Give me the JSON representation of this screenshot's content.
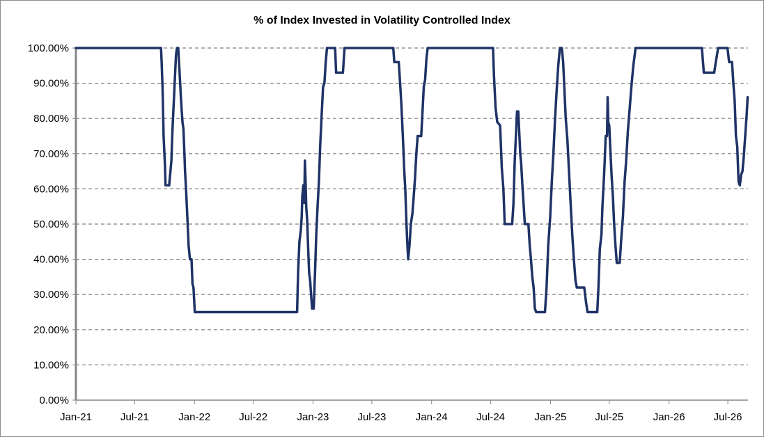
{
  "chart_data": {
    "type": "line",
    "title": "% of Index Invested in Volatility Controlled Index",
    "xlabel": "",
    "ylabel": "",
    "ylim": [
      0,
      100
    ],
    "y_ticks": [
      "0.00%",
      "10.00%",
      "20.00%",
      "30.00%",
      "40.00%",
      "50.00%",
      "60.00%",
      "70.00%",
      "80.00%",
      "90.00%",
      "100.00%"
    ],
    "x_ticks": [
      "Jan-21",
      "Jul-21",
      "Jan-22",
      "Jul-22",
      "Jan-23",
      "Jul-23",
      "Jan-24",
      "Jul-24",
      "Jan-25",
      "Jul-25",
      "Jan-26",
      "Jul-26"
    ],
    "grid": "horizontal dashed",
    "line_color": "#1f3366",
    "series": [
      {
        "values": [
          [
            "2021-01-01",
            100
          ],
          [
            "2021-01-02",
            100
          ],
          [
            "2021-02-15",
            100
          ],
          [
            "2021-04-01",
            100
          ],
          [
            "2021-06-01",
            100
          ],
          [
            "2021-08-01",
            100
          ],
          [
            "2021-09-20",
            100
          ],
          [
            "2021-09-22",
            96
          ],
          [
            "2021-09-25",
            88
          ],
          [
            "2021-09-28",
            75
          ],
          [
            "2021-10-02",
            67
          ],
          [
            "2021-10-04",
            61
          ],
          [
            "2021-10-15",
            61
          ],
          [
            "2021-10-22",
            68
          ],
          [
            "2021-10-25",
            76
          ],
          [
            "2021-10-28",
            82
          ],
          [
            "2021-11-01",
            90
          ],
          [
            "2021-11-05",
            98
          ],
          [
            "2021-11-08",
            100
          ],
          [
            "2021-11-12",
            100
          ],
          [
            "2021-11-15",
            95
          ],
          [
            "2021-11-18",
            90
          ],
          [
            "2021-11-20",
            86
          ],
          [
            "2021-11-23",
            82
          ],
          [
            "2021-11-25",
            79
          ],
          [
            "2021-11-28",
            77
          ],
          [
            "2021-12-01",
            70
          ],
          [
            "2021-12-03",
            65
          ],
          [
            "2021-12-06",
            60
          ],
          [
            "2021-12-10",
            52
          ],
          [
            "2021-12-14",
            44
          ],
          [
            "2021-12-18",
            40
          ],
          [
            "2021-12-23",
            40
          ],
          [
            "2021-12-26",
            33
          ],
          [
            "2021-12-29",
            32
          ],
          [
            "2022-01-02",
            25
          ],
          [
            "2022-02-01",
            25
          ],
          [
            "2022-04-01",
            25
          ],
          [
            "2022-06-01",
            25
          ],
          [
            "2022-08-01",
            25
          ],
          [
            "2022-10-01",
            25
          ],
          [
            "2022-11-13",
            25
          ],
          [
            "2022-11-16",
            36
          ],
          [
            "2022-11-20",
            45
          ],
          [
            "2022-11-24",
            48
          ],
          [
            "2022-11-27",
            52
          ],
          [
            "2022-11-29",
            58
          ],
          [
            "2022-12-02",
            61
          ],
          [
            "2022-12-05",
            56
          ],
          [
            "2022-12-07",
            68
          ],
          [
            "2022-12-09",
            62
          ],
          [
            "2022-12-11",
            55
          ],
          [
            "2022-12-14",
            51
          ],
          [
            "2022-12-17",
            43
          ],
          [
            "2022-12-20",
            36
          ],
          [
            "2022-12-23",
            34
          ],
          [
            "2022-12-26",
            30
          ],
          [
            "2022-12-29",
            26
          ],
          [
            "2023-01-03",
            26
          ],
          [
            "2023-01-07",
            36
          ],
          [
            "2023-01-11",
            47
          ],
          [
            "2023-01-15",
            55
          ],
          [
            "2023-01-19",
            62
          ],
          [
            "2023-01-23",
            72
          ],
          [
            "2023-01-27",
            80
          ],
          [
            "2023-02-01",
            89
          ],
          [
            "2023-02-05",
            90
          ],
          [
            "2023-02-09",
            96
          ],
          [
            "2023-02-13",
            100
          ],
          [
            "2023-03-10",
            100
          ],
          [
            "2023-03-13",
            93
          ],
          [
            "2023-04-03",
            93
          ],
          [
            "2023-04-08",
            100
          ],
          [
            "2023-05-01",
            100
          ],
          [
            "2023-07-01",
            100
          ],
          [
            "2023-09-05",
            100
          ],
          [
            "2023-09-08",
            96
          ],
          [
            "2023-09-22",
            96
          ],
          [
            "2023-09-26",
            90
          ],
          [
            "2023-09-30",
            84
          ],
          [
            "2023-10-03",
            78
          ],
          [
            "2023-10-06",
            72
          ],
          [
            "2023-10-09",
            65
          ],
          [
            "2023-10-12",
            60
          ],
          [
            "2023-10-15",
            52
          ],
          [
            "2023-10-18",
            45
          ],
          [
            "2023-10-21",
            40
          ],
          [
            "2023-10-25",
            44
          ],
          [
            "2023-10-29",
            50
          ],
          [
            "2023-11-03",
            53
          ],
          [
            "2023-11-07",
            58
          ],
          [
            "2023-11-11",
            63
          ],
          [
            "2023-11-15",
            70
          ],
          [
            "2023-11-19",
            75
          ],
          [
            "2023-11-30",
            75
          ],
          [
            "2023-12-04",
            82
          ],
          [
            "2023-12-08",
            89
          ],
          [
            "2023-12-12",
            91
          ],
          [
            "2023-12-16",
            97
          ],
          [
            "2023-12-20",
            100
          ],
          [
            "2024-02-01",
            100
          ],
          [
            "2024-04-01",
            100
          ],
          [
            "2024-06-01",
            100
          ],
          [
            "2024-07-08",
            100
          ],
          [
            "2024-07-11",
            92
          ],
          [
            "2024-07-16",
            83
          ],
          [
            "2024-07-21",
            79
          ],
          [
            "2024-07-30",
            78
          ],
          [
            "2024-08-04",
            66
          ],
          [
            "2024-08-09",
            60
          ],
          [
            "2024-08-13",
            50
          ],
          [
            "2024-09-05",
            50
          ],
          [
            "2024-09-09",
            56
          ],
          [
            "2024-09-13",
            68
          ],
          [
            "2024-09-17",
            76
          ],
          [
            "2024-09-20",
            82
          ],
          [
            "2024-09-24",
            82
          ],
          [
            "2024-09-27",
            76
          ],
          [
            "2024-09-30",
            70
          ],
          [
            "2024-10-03",
            67
          ],
          [
            "2024-10-06",
            62
          ],
          [
            "2024-10-10",
            56
          ],
          [
            "2024-10-14",
            50
          ],
          [
            "2024-10-25",
            50
          ],
          [
            "2024-10-29",
            44
          ],
          [
            "2024-11-02",
            40
          ],
          [
            "2024-11-06",
            35
          ],
          [
            "2024-11-10",
            32
          ],
          [
            "2024-11-14",
            26
          ],
          [
            "2024-11-18",
            25
          ],
          [
            "2024-12-15",
            25
          ],
          [
            "2024-12-20",
            32
          ],
          [
            "2024-12-25",
            44
          ],
          [
            "2024-12-31",
            52
          ],
          [
            "2025-01-05",
            62
          ],
          [
            "2025-01-10",
            70
          ],
          [
            "2025-01-15",
            80
          ],
          [
            "2025-01-20",
            88
          ],
          [
            "2025-01-25",
            95
          ],
          [
            "2025-01-30",
            100
          ],
          [
            "2025-02-05",
            100
          ],
          [
            "2025-02-09",
            96
          ],
          [
            "2025-02-13",
            88
          ],
          [
            "2025-02-17",
            80
          ],
          [
            "2025-02-22",
            74
          ],
          [
            "2025-02-27",
            65
          ],
          [
            "2025-03-04",
            56
          ],
          [
            "2025-03-09",
            47
          ],
          [
            "2025-03-14",
            40
          ],
          [
            "2025-03-19",
            34
          ],
          [
            "2025-03-23",
            32
          ],
          [
            "2025-04-15",
            32
          ],
          [
            "2025-04-20",
            28
          ],
          [
            "2025-04-25",
            25
          ],
          [
            "2025-05-25",
            25
          ],
          [
            "2025-05-29",
            33
          ],
          [
            "2025-06-02",
            43
          ],
          [
            "2025-06-07",
            47
          ],
          [
            "2025-06-10",
            55
          ],
          [
            "2025-06-14",
            62
          ],
          [
            "2025-06-17",
            68
          ],
          [
            "2025-06-20",
            75
          ],
          [
            "2025-06-24",
            75
          ],
          [
            "2025-06-26",
            86
          ],
          [
            "2025-06-28",
            79
          ],
          [
            "2025-07-01",
            78
          ],
          [
            "2025-07-04",
            72
          ],
          [
            "2025-07-08",
            64
          ],
          [
            "2025-07-12",
            58
          ],
          [
            "2025-07-16",
            50
          ],
          [
            "2025-07-20",
            44
          ],
          [
            "2025-07-24",
            39
          ],
          [
            "2025-08-02",
            39
          ],
          [
            "2025-08-07",
            46
          ],
          [
            "2025-08-12",
            52
          ],
          [
            "2025-08-17",
            62
          ],
          [
            "2025-08-22",
            68
          ],
          [
            "2025-08-27",
            76
          ],
          [
            "2025-09-02",
            83
          ],
          [
            "2025-09-08",
            90
          ],
          [
            "2025-09-13",
            95
          ],
          [
            "2025-09-20",
            100
          ],
          [
            "2025-11-01",
            100
          ],
          [
            "2026-01-01",
            100
          ],
          [
            "2026-03-01",
            100
          ],
          [
            "2026-04-12",
            100
          ],
          [
            "2026-04-18",
            93
          ],
          [
            "2026-05-20",
            93
          ],
          [
            "2026-05-25",
            96
          ],
          [
            "2026-06-01",
            100
          ],
          [
            "2026-06-30",
            100
          ],
          [
            "2026-07-05",
            96
          ],
          [
            "2026-07-14",
            96
          ],
          [
            "2026-07-18",
            90
          ],
          [
            "2026-07-22",
            85
          ],
          [
            "2026-07-26",
            75
          ],
          [
            "2026-07-30",
            72
          ],
          [
            "2026-08-03",
            62
          ],
          [
            "2026-08-07",
            61
          ],
          [
            "2026-08-11",
            64
          ],
          [
            "2026-08-15",
            65
          ],
          [
            "2026-08-19",
            69
          ],
          [
            "2026-08-22",
            73
          ],
          [
            "2026-08-25",
            77
          ],
          [
            "2026-08-28",
            81
          ],
          [
            "2026-08-31",
            86
          ]
        ]
      }
    ]
  }
}
